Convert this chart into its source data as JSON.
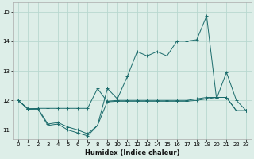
{
  "title": "",
  "xlabel": "Humidex (Indice chaleur)",
  "ylabel": "",
  "bg_color": "#ddeee8",
  "grid_color": "#b8d8d0",
  "line_color": "#1a6b6b",
  "xlim": [
    -0.5,
    23.5
  ],
  "ylim": [
    10.7,
    15.3
  ],
  "yticks": [
    11,
    12,
    13,
    14,
    15
  ],
  "xticks": [
    0,
    1,
    2,
    3,
    4,
    5,
    6,
    7,
    8,
    9,
    10,
    11,
    12,
    13,
    14,
    15,
    16,
    17,
    18,
    19,
    20,
    21,
    22,
    23
  ],
  "series1_x": [
    0,
    1,
    2,
    3,
    4,
    5,
    6,
    7,
    8,
    9,
    10,
    11,
    12,
    13,
    14,
    15,
    16,
    17,
    18,
    19,
    20,
    21,
    22,
    23
  ],
  "series1_y": [
    12.0,
    11.7,
    11.73,
    11.73,
    11.73,
    11.73,
    11.73,
    11.73,
    12.4,
    11.95,
    11.97,
    11.97,
    11.97,
    11.97,
    11.97,
    11.97,
    11.97,
    11.97,
    12.0,
    12.05,
    12.1,
    12.1,
    11.65,
    11.65
  ],
  "series2_x": [
    0,
    1,
    2,
    3,
    4,
    5,
    6,
    7,
    8,
    9,
    10,
    11,
    12,
    13,
    14,
    15,
    16,
    17,
    18,
    19,
    20,
    21,
    22,
    23
  ],
  "series2_y": [
    12.0,
    11.72,
    11.72,
    11.2,
    11.25,
    11.1,
    11.0,
    10.87,
    11.15,
    11.97,
    12.0,
    12.0,
    12.0,
    12.0,
    12.0,
    12.0,
    12.0,
    12.0,
    12.05,
    12.1,
    12.1,
    12.1,
    11.65,
    11.65
  ],
  "series3_x": [
    0,
    1,
    2,
    3,
    4,
    5,
    6,
    7,
    8,
    9,
    10,
    11,
    12,
    13,
    14,
    15,
    16,
    17,
    18,
    19,
    20,
    21,
    22,
    23
  ],
  "series3_y": [
    12.0,
    11.7,
    11.7,
    11.15,
    11.2,
    11.0,
    10.9,
    10.8,
    11.15,
    12.4,
    12.05,
    12.8,
    13.65,
    13.5,
    13.65,
    13.5,
    14.0,
    14.0,
    14.05,
    14.85,
    12.05,
    12.95,
    12.0,
    11.65
  ]
}
